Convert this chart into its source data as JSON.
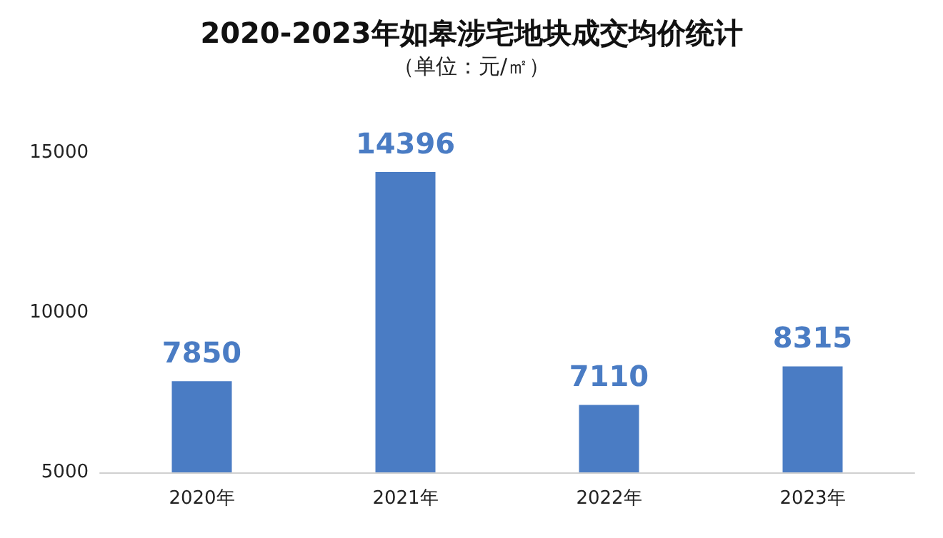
{
  "chart_data": {
    "type": "bar",
    "title": "2020-2023年如皋涉宅地块成交均价统计",
    "subtitle": "（单位：元/㎡）",
    "categories": [
      "2020年",
      "2021年",
      "2022年",
      "2023年"
    ],
    "values": [
      7850,
      14396,
      7110,
      8315
    ],
    "color": "#4a7cc4",
    "ylim": [
      5000,
      15000
    ],
    "yticks": [
      5000,
      10000,
      15000
    ],
    "grid": false,
    "data_labels": true
  }
}
